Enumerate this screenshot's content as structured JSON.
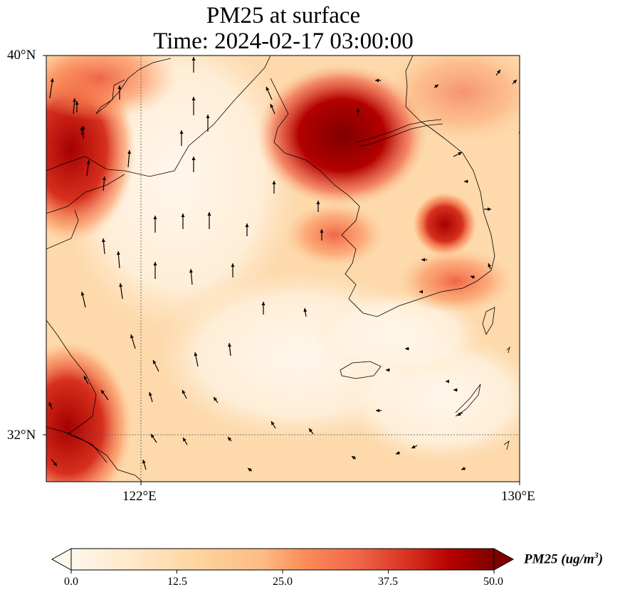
{
  "title": {
    "line1": "PM25 at surface",
    "line2": "Time: 2024-02-17 03:00:00"
  },
  "axes": {
    "lat_labels": [
      "40°N",
      "32°N"
    ],
    "lon_labels": [
      "122°E",
      "130°E"
    ],
    "lat_range": [
      31,
      40
    ],
    "lon_range": [
      120,
      130
    ],
    "gridlines": "dotted at 122°E and 32°N"
  },
  "colorbar": {
    "label_main": "PM25 (ug/m",
    "label_sup": "3",
    "label_end": ")",
    "ticks": [
      "0.0",
      "12.5",
      "25.0",
      "37.5",
      "50.0"
    ],
    "min": 0,
    "max": 50,
    "extend": "both",
    "colormap": "OrRd"
  },
  "colors": {
    "low": "#fff7ec",
    "mid": "#fc8d59",
    "high": "#7f0000",
    "coast": "#000000"
  },
  "map": {
    "features": [
      "coastline",
      "pm25-field",
      "wind-vectors"
    ]
  }
}
